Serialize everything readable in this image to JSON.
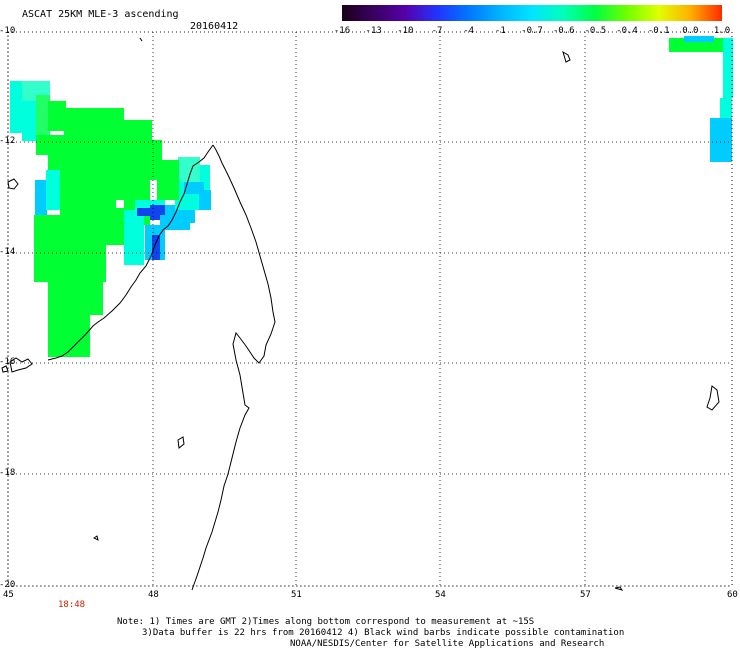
{
  "header": {
    "title": "ASCAT 25KM MLE-3 ascending",
    "date": "20160412"
  },
  "colorbar": {
    "labels": [
      "-16",
      "-13",
      "-10",
      "-7",
      "-4",
      "-1",
      "-0.7",
      "-0.6",
      "-0.5",
      "-0.4",
      "-0.1",
      "0.0",
      "1.0"
    ],
    "colors": [
      "#1a0018",
      "#3a0060",
      "#5500aa",
      "#2233ff",
      "#0077ff",
      "#00b3ff",
      "#00e5ff",
      "#00ffb8",
      "#00ff40",
      "#70ff00",
      "#e0ff00",
      "#ffb000",
      "#ff2a00"
    ]
  },
  "map": {
    "lat_labels": [
      "-10",
      "-12",
      "-14",
      "-16",
      "-18",
      "-20"
    ],
    "lon_labels": [
      "45",
      "48",
      "51",
      "54",
      "57",
      "60"
    ],
    "time_label": "18:48",
    "colors": {
      "green": "#00ff33",
      "light_green": "#22ff66",
      "cyan": "#00ffdd",
      "cyan_light": "#33ffcc",
      "sky": "#00ccff",
      "blue": "#0077ff",
      "dark_blue": "#1144ee",
      "coast": "#000000"
    }
  },
  "footer": {
    "note1": "Note: 1) Times are GMT 2)Times along bottom correspond to measurement at ~15S",
    "note2": "3)Data buffer is 22 hrs from 20160412 4) Black wind barbs indicate possible contamination",
    "note3": "NOAA/NESDIS/Center for Satellite Applications and Research"
  }
}
